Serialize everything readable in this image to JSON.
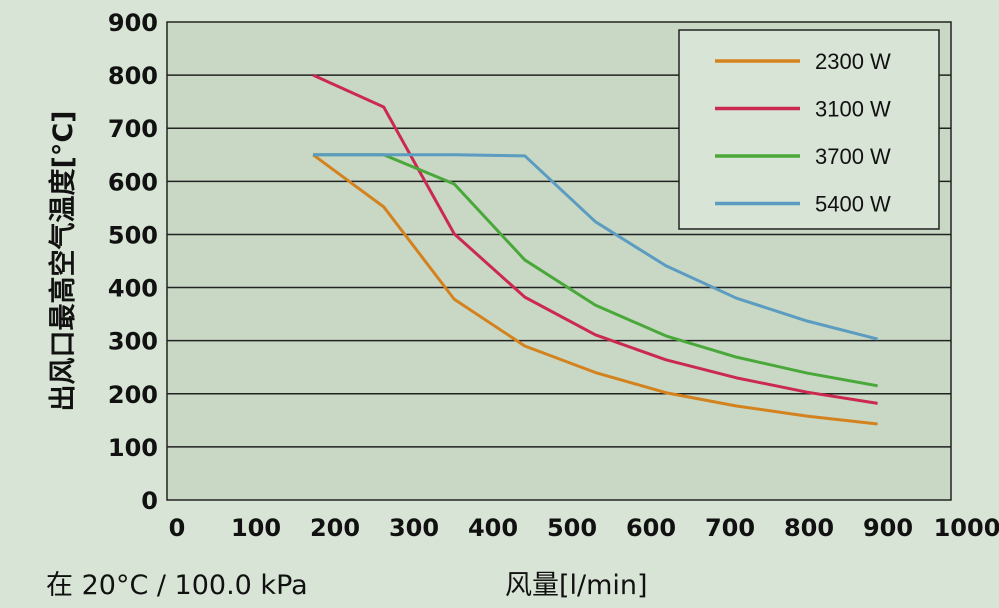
{
  "chart_data": {
    "type": "line",
    "title": "",
    "xlabel": "风量[l/min]",
    "ylabel": "出风口最高空气温度[°C]",
    "note": "在 20°C / 100.0 kPa",
    "xlim": [
      0,
      1000
    ],
    "ylim": [
      0,
      900
    ],
    "xticks": [
      "0",
      "100",
      "200",
      "300",
      "400",
      "500",
      "600",
      "700",
      "800",
      "900",
      "1000"
    ],
    "yticks": [
      "0",
      "100",
      "200",
      "300",
      "400",
      "500",
      "600",
      "700",
      "800",
      "900"
    ],
    "grid": "horizontal",
    "legend_position": "top-right",
    "x": [
      180,
      270,
      360,
      450,
      540,
      630,
      720,
      810,
      900
    ],
    "series": [
      {
        "name": "2300 W",
        "color": "#d4821e",
        "values": [
          650,
          552,
          378,
          290,
          240,
          202,
          177,
          158,
          143
        ]
      },
      {
        "name": "3100 W",
        "color": "#cc2950",
        "values": [
          800,
          740,
          501,
          382,
          311,
          264,
          230,
          203,
          182
        ]
      },
      {
        "name": "3700 W",
        "color": "#4aa83a",
        "values": [
          650,
          650,
          595,
          452,
          367,
          309,
          269,
          239,
          215
        ]
      },
      {
        "name": "5400 W",
        "color": "#5b9cc0",
        "values": [
          650,
          650,
          650,
          648,
          524,
          441,
          380,
          337,
          303
        ]
      }
    ]
  }
}
